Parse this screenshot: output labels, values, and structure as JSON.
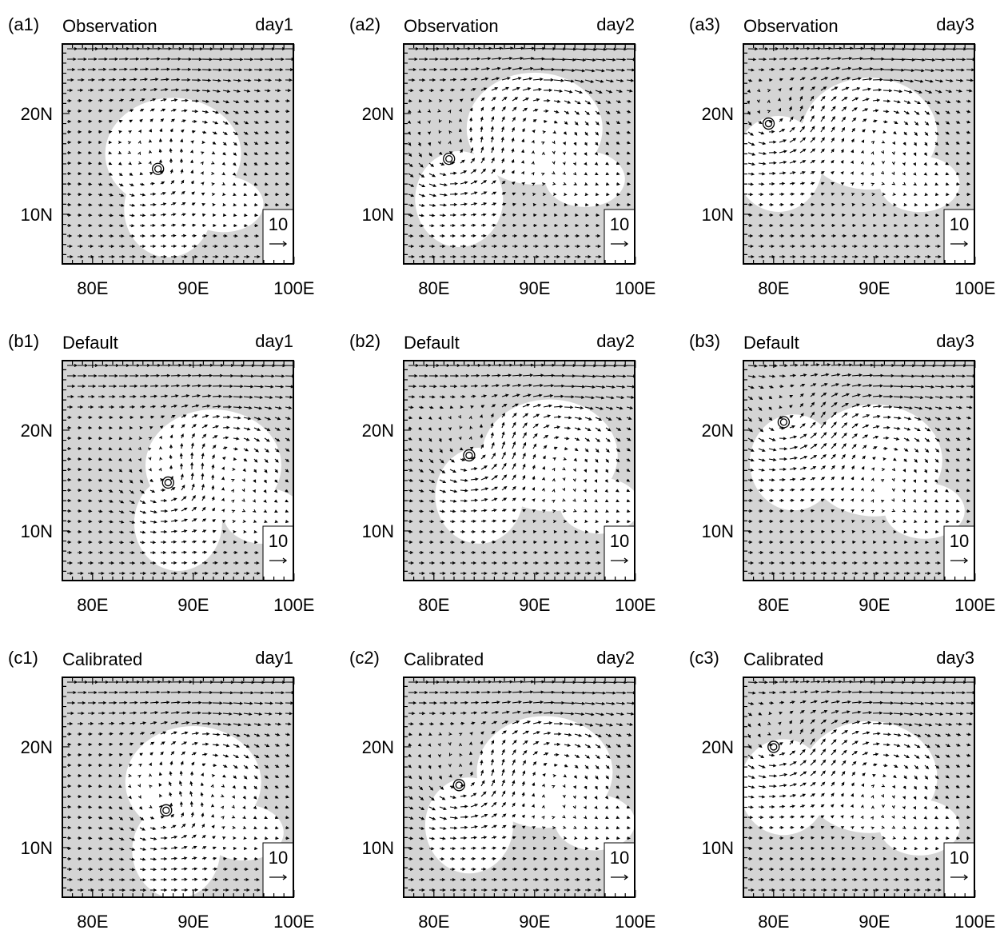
{
  "panels": [
    {
      "label": "(a1)",
      "title": "Observation",
      "day": "day1",
      "ref": "10"
    },
    {
      "label": "(a2)",
      "title": "Observation",
      "day": "day2",
      "ref": "10"
    },
    {
      "label": "(a3)",
      "title": "Observation",
      "day": "day3",
      "ref": "10"
    },
    {
      "label": "(b1)",
      "title": "Default",
      "day": "day1",
      "ref": "10"
    },
    {
      "label": "(b2)",
      "title": "Default",
      "day": "day2",
      "ref": "10"
    },
    {
      "label": "(b3)",
      "title": "Default",
      "day": "day3",
      "ref": "10"
    },
    {
      "label": "(c1)",
      "title": "Calibrated",
      "day": "day1",
      "ref": "10"
    },
    {
      "label": "(c2)",
      "title": "Calibrated",
      "day": "day2",
      "ref": "10"
    },
    {
      "label": "(c3)",
      "title": "Calibrated",
      "day": "day3",
      "ref": "10"
    }
  ],
  "x_ticks": [
    "80E",
    "90E",
    "100E"
  ],
  "y_ticks": [
    "20N",
    "10N"
  ]
}
